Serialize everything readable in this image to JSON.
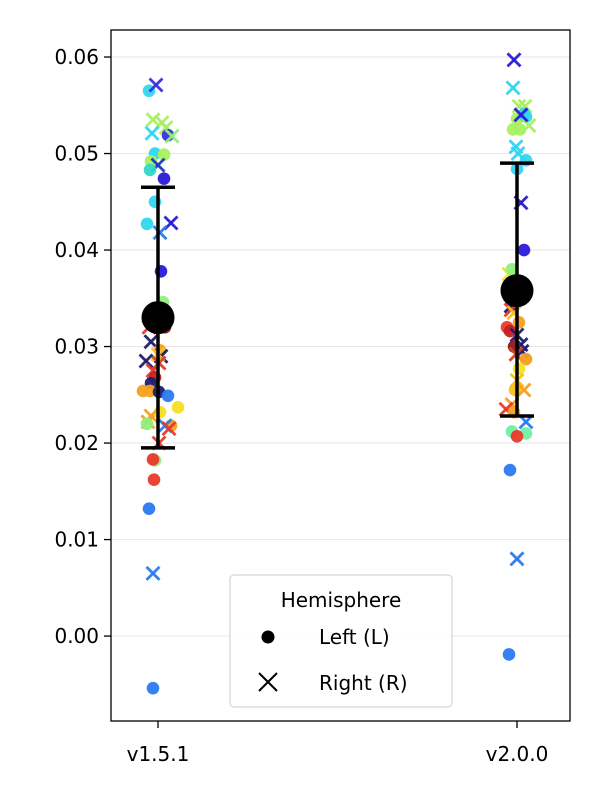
{
  "chart_data": {
    "type": "scatter",
    "categories": [
      "v1.5.1",
      "v2.0.0"
    ],
    "yticks": [
      "0.00",
      "0.01",
      "0.02",
      "0.03",
      "0.04",
      "0.05",
      "0.06"
    ],
    "ylim": [
      -0.0088,
      0.0628
    ],
    "grid": "horizontal",
    "legend": {
      "title": "Hemisphere",
      "placement": "bottom-center",
      "entries": [
        {
          "label": "Left (L)",
          "marker": "circle"
        },
        {
          "label": "Right (R)",
          "marker": "x"
        }
      ]
    },
    "summary": [
      {
        "category": "v1.5.1",
        "mean": 0.033,
        "lower": 0.0195,
        "upper": 0.0465
      },
      {
        "category": "v2.0.0",
        "mean": 0.0358,
        "lower": 0.0228,
        "upper": 0.049
      }
    ],
    "points": [
      {
        "c": 0,
        "dx": -0.09,
        "y": 0.0565,
        "m": "o",
        "col": "#2fd6f0"
      },
      {
        "c": 0,
        "dx": -0.02,
        "y": 0.0571,
        "m": "x",
        "col": "#3b2fe0"
      },
      {
        "c": 0,
        "dx": -0.05,
        "y": 0.0535,
        "m": "x",
        "col": "#a8f060"
      },
      {
        "c": 0,
        "dx": 0.04,
        "y": 0.0532,
        "m": "x",
        "col": "#a8f060"
      },
      {
        "c": 0,
        "dx": 0.08,
        "y": 0.0527,
        "m": "x",
        "col": "#a8f060"
      },
      {
        "c": 0,
        "dx": -0.06,
        "y": 0.0521,
        "m": "x",
        "col": "#2fd6f0"
      },
      {
        "c": 0,
        "dx": 0.1,
        "y": 0.0519,
        "m": "o",
        "col": "#3b2fe0"
      },
      {
        "c": 0,
        "dx": 0.14,
        "y": 0.0518,
        "m": "x",
        "col": "#8ff07a"
      },
      {
        "c": 0,
        "dx": -0.03,
        "y": 0.05,
        "m": "o",
        "col": "#2fd6f0"
      },
      {
        "c": 0,
        "dx": 0.06,
        "y": 0.0499,
        "m": "o",
        "col": "#a8f060"
      },
      {
        "c": 0,
        "dx": -0.07,
        "y": 0.0492,
        "m": "o",
        "col": "#a8f060"
      },
      {
        "c": 0,
        "dx": 0.0,
        "y": 0.0488,
        "m": "x",
        "col": "#1e3ab8"
      },
      {
        "c": 0,
        "dx": -0.08,
        "y": 0.0483,
        "m": "o",
        "col": "#30d8c8"
      },
      {
        "c": 0,
        "dx": 0.06,
        "y": 0.0474,
        "m": "o",
        "col": "#2a1ad8"
      },
      {
        "c": 0,
        "dx": -0.03,
        "y": 0.045,
        "m": "o",
        "col": "#2fd6f0"
      },
      {
        "c": 0,
        "dx": 0.13,
        "y": 0.0428,
        "m": "x",
        "col": "#2a1ad8"
      },
      {
        "c": 0,
        "dx": -0.11,
        "y": 0.0427,
        "m": "o",
        "col": "#2fd6f0"
      },
      {
        "c": 0,
        "dx": 0.02,
        "y": 0.0418,
        "m": "x",
        "col": "#2a7af0"
      },
      {
        "c": 0,
        "dx": 0.03,
        "y": 0.0378,
        "m": "o",
        "col": "#2a1ad8"
      },
      {
        "c": 0,
        "dx": 0.05,
        "y": 0.0346,
        "m": "o",
        "col": "#8ff07a"
      },
      {
        "c": 0,
        "dx": -0.04,
        "y": 0.034,
        "m": "o",
        "col": "#30a0e0"
      },
      {
        "c": 0,
        "dx": 0.07,
        "y": 0.032,
        "m": "o",
        "col": "#8b1a1a"
      },
      {
        "c": 0,
        "dx": -0.09,
        "y": 0.032,
        "m": "x",
        "col": "#e83a2a"
      },
      {
        "c": 0,
        "dx": -0.07,
        "y": 0.0305,
        "m": "x",
        "col": "#1e1e6e"
      },
      {
        "c": 0,
        "dx": 0.02,
        "y": 0.0296,
        "m": "o",
        "col": "#f5a020"
      },
      {
        "c": 0,
        "dx": 0.03,
        "y": 0.029,
        "m": "x",
        "col": "#1e1e6e"
      },
      {
        "c": 0,
        "dx": 0.0,
        "y": 0.0292,
        "m": "x",
        "col": "#f5c020"
      },
      {
        "c": 0,
        "dx": -0.12,
        "y": 0.0285,
        "m": "x",
        "col": "#1e1e6e"
      },
      {
        "c": 0,
        "dx": 0.01,
        "y": 0.0283,
        "m": "x",
        "col": "#d84020"
      },
      {
        "c": 0,
        "dx": -0.05,
        "y": 0.0275,
        "m": "x",
        "col": "#e83a2a"
      },
      {
        "c": 0,
        "dx": -0.03,
        "y": 0.0268,
        "m": "o",
        "col": "#c82020"
      },
      {
        "c": 0,
        "dx": -0.07,
        "y": 0.0262,
        "m": "o",
        "col": "#1e1e6e"
      },
      {
        "c": 0,
        "dx": -0.15,
        "y": 0.0254,
        "m": "o",
        "col": "#f5a020"
      },
      {
        "c": 0,
        "dx": -0.08,
        "y": 0.0254,
        "m": "o",
        "col": "#f5a020"
      },
      {
        "c": 0,
        "dx": 0.01,
        "y": 0.0253,
        "m": "o",
        "col": "#1e1e6e"
      },
      {
        "c": 0,
        "dx": 0.1,
        "y": 0.0249,
        "m": "o",
        "col": "#2a7af0"
      },
      {
        "c": 0,
        "dx": 0.2,
        "y": 0.0237,
        "m": "o",
        "col": "#f5e020"
      },
      {
        "c": 0,
        "dx": 0.02,
        "y": 0.0232,
        "m": "o",
        "col": "#f5e020"
      },
      {
        "c": 0,
        "dx": -0.07,
        "y": 0.0228,
        "m": "x",
        "col": "#f5a020"
      },
      {
        "c": 0,
        "dx": -0.1,
        "y": 0.0222,
        "m": "x",
        "col": "#f5a020"
      },
      {
        "c": 0,
        "dx": -0.11,
        "y": 0.022,
        "m": "o",
        "col": "#8ff07a"
      },
      {
        "c": 0,
        "dx": 0.13,
        "y": 0.0218,
        "m": "o",
        "col": "#f5a020"
      },
      {
        "c": 0,
        "dx": 0.07,
        "y": 0.0218,
        "m": "x",
        "col": "#2a7af0"
      },
      {
        "c": 0,
        "dx": 0.11,
        "y": 0.0215,
        "m": "x",
        "col": "#e83a2a"
      },
      {
        "c": 0,
        "dx": 0.01,
        "y": 0.02,
        "m": "x",
        "col": "#e83a2a"
      },
      {
        "c": 0,
        "dx": -0.03,
        "y": 0.0182,
        "m": "o",
        "col": "#8ff07a"
      },
      {
        "c": 0,
        "dx": -0.05,
        "y": 0.0183,
        "m": "o",
        "col": "#e83a2a"
      },
      {
        "c": 0,
        "dx": -0.04,
        "y": 0.0162,
        "m": "o",
        "col": "#e83a2a"
      },
      {
        "c": 0,
        "dx": -0.09,
        "y": 0.0132,
        "m": "o",
        "col": "#2a7af0"
      },
      {
        "c": 0,
        "dx": -0.05,
        "y": 0.0065,
        "m": "x",
        "col": "#2a7af0"
      },
      {
        "c": 0,
        "dx": -0.05,
        "y": -0.0054,
        "m": "o",
        "col": "#2a7af0"
      },
      {
        "c": 1,
        "dx": -0.03,
        "y": 0.0597,
        "m": "x",
        "col": "#2a1ad8"
      },
      {
        "c": 1,
        "dx": -0.04,
        "y": 0.0568,
        "m": "x",
        "col": "#2fd6f0"
      },
      {
        "c": 1,
        "dx": 0.08,
        "y": 0.0549,
        "m": "x",
        "col": "#a8f060"
      },
      {
        "c": 1,
        "dx": 0.02,
        "y": 0.0549,
        "m": "x",
        "col": "#a8f060"
      },
      {
        "c": 1,
        "dx": 0.07,
        "y": 0.0541,
        "m": "o",
        "col": "#2fd6f0"
      },
      {
        "c": 1,
        "dx": 0.0,
        "y": 0.0536,
        "m": "o",
        "col": "#a8f060"
      },
      {
        "c": 1,
        "dx": 0.09,
        "y": 0.0538,
        "m": "o",
        "col": "#2fd6f0"
      },
      {
        "c": 1,
        "dx": 0.12,
        "y": 0.0529,
        "m": "x",
        "col": "#a8f060"
      },
      {
        "c": 1,
        "dx": 0.04,
        "y": 0.054,
        "m": "x",
        "col": "#2a1ad8"
      },
      {
        "c": 1,
        "dx": -0.04,
        "y": 0.0525,
        "m": "o",
        "col": "#a8f060"
      },
      {
        "c": 1,
        "dx": 0.03,
        "y": 0.0525,
        "m": "o",
        "col": "#a8f060"
      },
      {
        "c": 1,
        "dx": -0.01,
        "y": 0.0507,
        "m": "x",
        "col": "#2fd6f0"
      },
      {
        "c": 1,
        "dx": 0.01,
        "y": 0.05,
        "m": "x",
        "col": "#2fd6f0"
      },
      {
        "c": 1,
        "dx": 0.0,
        "y": 0.0484,
        "m": "o",
        "col": "#2fd6f0"
      },
      {
        "c": 1,
        "dx": 0.09,
        "y": 0.0493,
        "m": "o",
        "col": "#2fd6f0"
      },
      {
        "c": 1,
        "dx": 0.04,
        "y": 0.0449,
        "m": "x",
        "col": "#2a1ad8"
      },
      {
        "c": 1,
        "dx": 0.07,
        "y": 0.04,
        "m": "o",
        "col": "#2a1ad8"
      },
      {
        "c": 1,
        "dx": -0.08,
        "y": 0.0375,
        "m": "x",
        "col": "#f5e020"
      },
      {
        "c": 1,
        "dx": -0.05,
        "y": 0.038,
        "m": "o",
        "col": "#8ff07a"
      },
      {
        "c": 1,
        "dx": -0.06,
        "y": 0.0342,
        "m": "x",
        "col": "#1e1e6e"
      },
      {
        "c": 1,
        "dx": -0.06,
        "y": 0.0338,
        "m": "x",
        "col": "#e83a2a"
      },
      {
        "c": 1,
        "dx": -0.03,
        "y": 0.0335,
        "m": "x",
        "col": "#f5c020"
      },
      {
        "c": 1,
        "dx": 0.02,
        "y": 0.0325,
        "m": "o",
        "col": "#f5a020"
      },
      {
        "c": 1,
        "dx": -0.1,
        "y": 0.032,
        "m": "o",
        "col": "#e83a2a"
      },
      {
        "c": 1,
        "dx": -0.07,
        "y": 0.0316,
        "m": "o",
        "col": "#c82020"
      },
      {
        "c": 1,
        "dx": 0.0,
        "y": 0.0312,
        "m": "x",
        "col": "#1e1e6e"
      },
      {
        "c": 1,
        "dx": 0.04,
        "y": 0.0302,
        "m": "x",
        "col": "#1e1e6e"
      },
      {
        "c": 1,
        "dx": -0.03,
        "y": 0.03,
        "m": "o",
        "col": "#8b1a1a"
      },
      {
        "c": 1,
        "dx": 0.05,
        "y": 0.0295,
        "m": "x",
        "col": "#1e1e6e"
      },
      {
        "c": 1,
        "dx": -0.01,
        "y": 0.0292,
        "m": "x",
        "col": "#d84020"
      },
      {
        "c": 1,
        "dx": 0.09,
        "y": 0.0287,
        "m": "o",
        "col": "#f5a020"
      },
      {
        "c": 1,
        "dx": 0.02,
        "y": 0.0277,
        "m": "o",
        "col": "#f5e020"
      },
      {
        "c": 1,
        "dx": 0.0,
        "y": 0.0265,
        "m": "x",
        "col": "#f5c020"
      },
      {
        "c": 1,
        "dx": -0.02,
        "y": 0.0255,
        "m": "o",
        "col": "#f5c020"
      },
      {
        "c": 1,
        "dx": 0.07,
        "y": 0.0255,
        "m": "x",
        "col": "#f5a020"
      },
      {
        "c": 1,
        "dx": -0.05,
        "y": 0.024,
        "m": "x",
        "col": "#f5a020"
      },
      {
        "c": 1,
        "dx": -0.11,
        "y": 0.0235,
        "m": "x",
        "col": "#e83a2a"
      },
      {
        "c": 1,
        "dx": -0.03,
        "y": 0.0232,
        "m": "o",
        "col": "#f5a020"
      },
      {
        "c": 1,
        "dx": 0.09,
        "y": 0.0222,
        "m": "x",
        "col": "#2a7af0"
      },
      {
        "c": 1,
        "dx": -0.05,
        "y": 0.0212,
        "m": "o",
        "col": "#6ff0a0"
      },
      {
        "c": 1,
        "dx": 0.09,
        "y": 0.021,
        "m": "o",
        "col": "#6ff0a0"
      },
      {
        "c": 1,
        "dx": 0.0,
        "y": 0.0207,
        "m": "o",
        "col": "#e83a2a"
      },
      {
        "c": 1,
        "dx": -0.07,
        "y": 0.0172,
        "m": "o",
        "col": "#2a7af0"
      },
      {
        "c": 1,
        "dx": 0.0,
        "y": 0.008,
        "m": "x",
        "col": "#2a7af0"
      },
      {
        "c": 1,
        "dx": -0.08,
        "y": -0.0019,
        "m": "o",
        "col": "#2a7af0"
      }
    ]
  }
}
